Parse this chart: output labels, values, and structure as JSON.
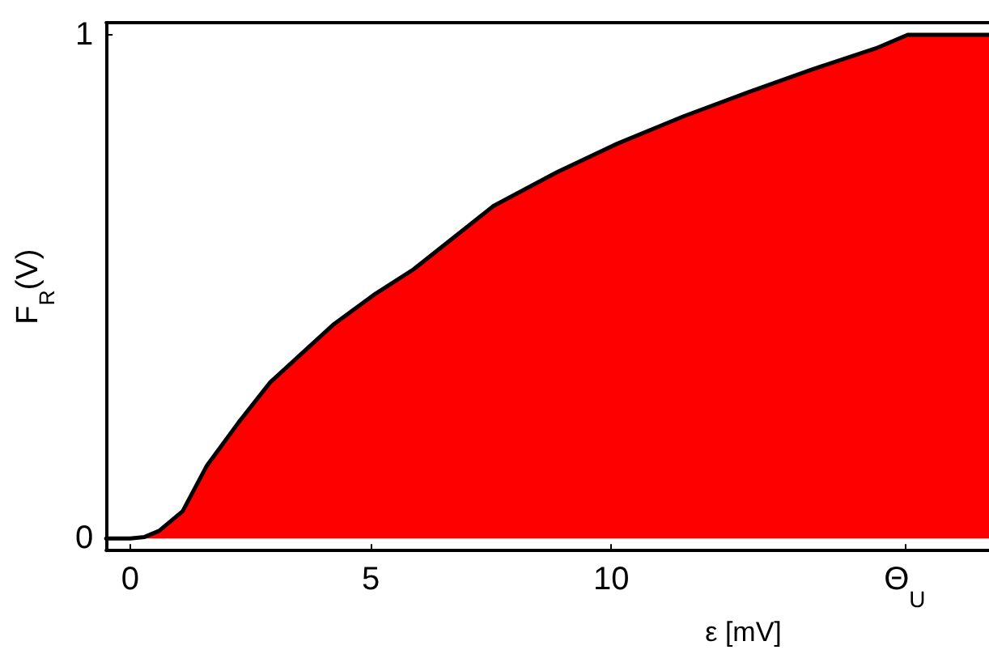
{
  "chart_data": {
    "type": "area",
    "xlabel": "ε [mV]",
    "ylabel": "F$_{R}$(V)",
    "x": [
      -0.5,
      0,
      0.3,
      0.6,
      1.09,
      1.59,
      2.25,
      2.91,
      4.24,
      5.1,
      5.9,
      7.55,
      8.87,
      10.13,
      11.5,
      12.85,
      14.17,
      15.5,
      16.16,
      17.85
    ],
    "series": [
      {
        "color": "#ff0000",
        "values": [
          0,
          0,
          0.003,
          0.015,
          0.054,
          0.144,
          0.23,
          0.31,
          0.426,
          0.486,
          0.535,
          0.66,
          0.727,
          0.784,
          0.838,
          0.886,
          0.931,
          0.973,
          1,
          1
        ]
      }
    ],
    "xlim": [
      -0.5,
      17.85
    ],
    "ylim": [
      -0.024,
      1.024
    ],
    "xticks": [
      0,
      5,
      10,
      {
        "value": 16.1,
        "label": "Θ$_{U}$"
      }
    ],
    "yticks": [
      0,
      1
    ],
    "grid": false,
    "marker": "none",
    "line_style": "solid"
  }
}
